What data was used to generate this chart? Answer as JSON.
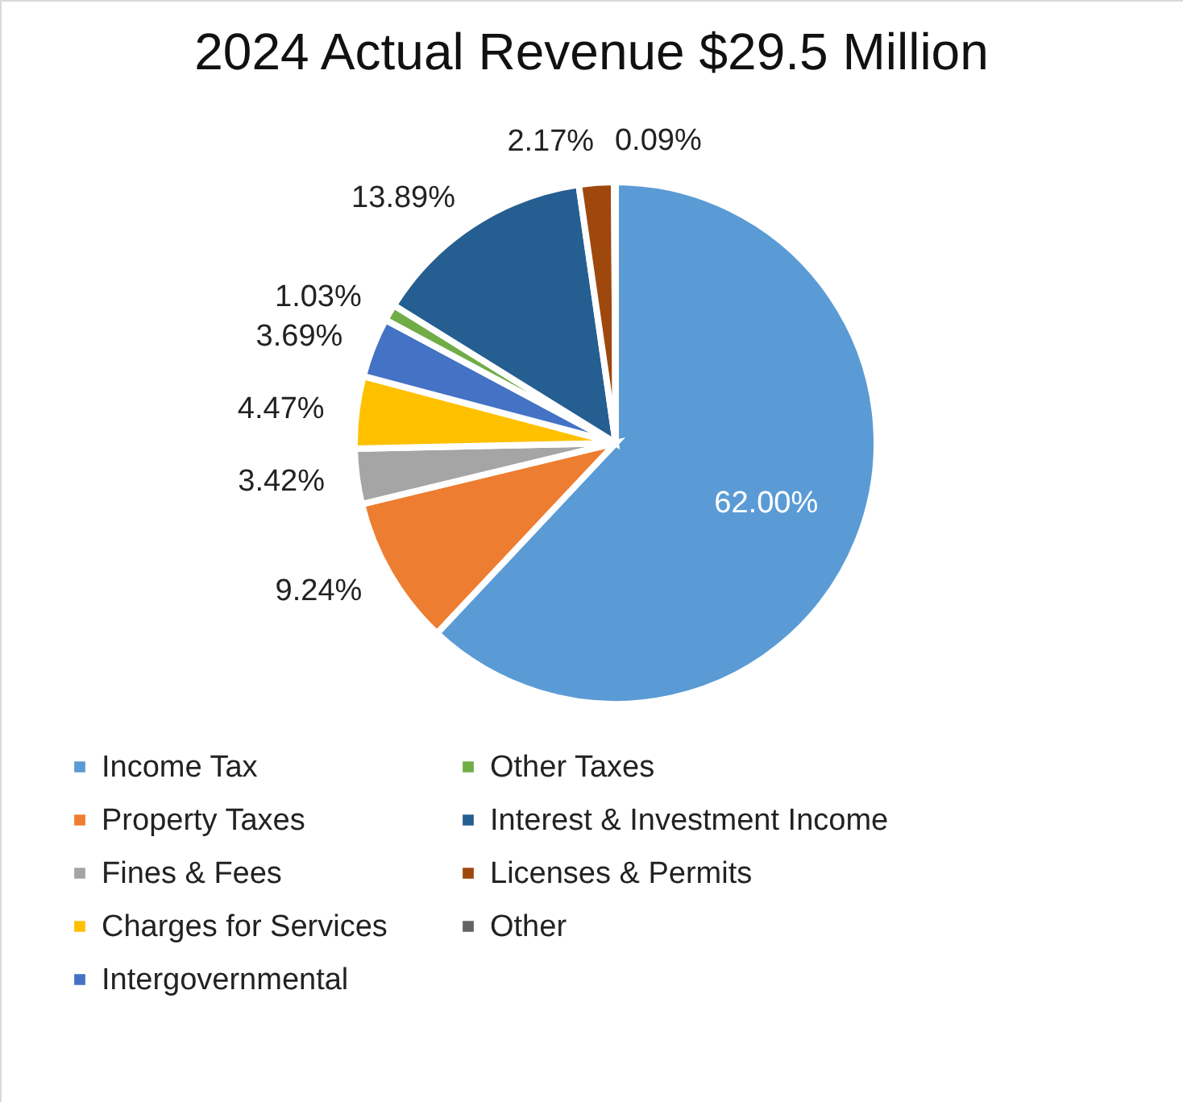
{
  "chart_data": {
    "type": "pie",
    "title": "2024 Actual Revenue $29.5 Million",
    "categories": [
      "Income Tax",
      "Property Taxes",
      "Fines & Fees",
      "Charges for Services",
      "Intergovernmental",
      "Other Taxes",
      "Interest & Investment Income",
      "Licenses & Permits",
      "Other"
    ],
    "values": [
      62.0,
      9.24,
      3.42,
      4.47,
      3.69,
      1.03,
      13.89,
      2.17,
      0.09
    ],
    "value_labels": [
      "62.00%",
      "9.24%",
      "3.42%",
      "4.47%",
      "3.69%",
      "1.03%",
      "13.89%",
      "2.17%",
      "0.09%"
    ],
    "colors": [
      "#5b9bd5",
      "#ed7d31",
      "#a5a5a5",
      "#ffc000",
      "#4472c4",
      "#70ad47",
      "#255e91",
      "#9e480e",
      "#636363"
    ],
    "legend": "bottom"
  }
}
